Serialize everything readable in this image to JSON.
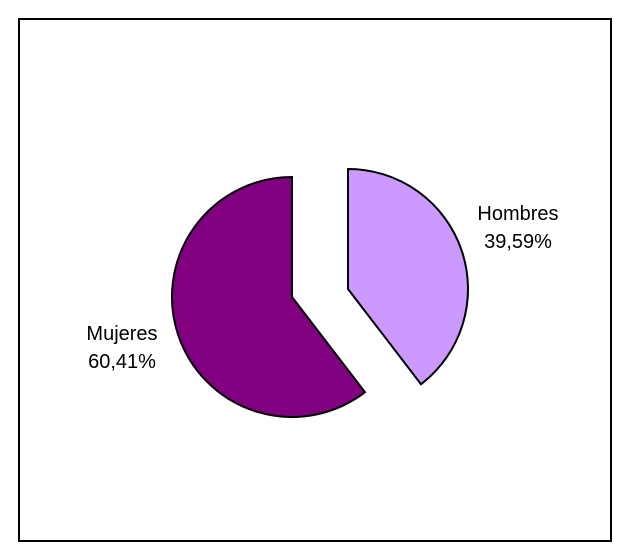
{
  "chart_data": {
    "type": "pie",
    "title": "",
    "exploded": true,
    "legend": "none",
    "slices": [
      {
        "label": "Hombres",
        "value": 39.59,
        "value_label": "39,59%",
        "color": "#cc99ff"
      },
      {
        "label": "Mujeres",
        "value": 60.41,
        "value_label": "60,41%",
        "color": "#800080"
      }
    ]
  }
}
